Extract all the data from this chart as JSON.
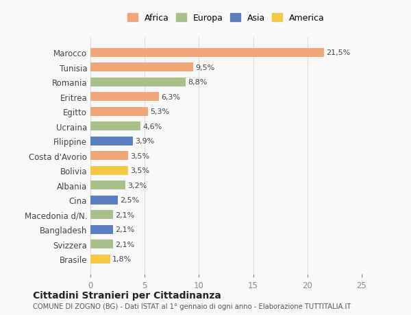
{
  "categories": [
    "Brasile",
    "Svizzera",
    "Bangladesh",
    "Macedonia d/N.",
    "Cina",
    "Albania",
    "Bolivia",
    "Costa d'Avorio",
    "Filippine",
    "Ucraina",
    "Egitto",
    "Eritrea",
    "Romania",
    "Tunisia",
    "Marocco"
  ],
  "values": [
    1.8,
    2.1,
    2.1,
    2.1,
    2.5,
    3.2,
    3.5,
    3.5,
    3.9,
    4.6,
    5.3,
    6.3,
    8.8,
    9.5,
    21.5
  ],
  "colors": [
    "#F5C842",
    "#A8C08A",
    "#5B7FC1",
    "#A8C08A",
    "#5B7FC1",
    "#A8C08A",
    "#F5C842",
    "#F0A87A",
    "#5B7FC1",
    "#A8C08A",
    "#F0A87A",
    "#F0A87A",
    "#A8C08A",
    "#F0A87A",
    "#F0A87A"
  ],
  "labels": [
    "1,8%",
    "2,1%",
    "2,1%",
    "2,1%",
    "2,5%",
    "3,2%",
    "3,5%",
    "3,5%",
    "3,9%",
    "4,6%",
    "5,3%",
    "6,3%",
    "8,8%",
    "9,5%",
    "21,5%"
  ],
  "xlim": [
    0,
    25
  ],
  "xticks": [
    0,
    5,
    10,
    15,
    20,
    25
  ],
  "legend": [
    {
      "label": "Africa",
      "color": "#F0A87A"
    },
    {
      "label": "Europa",
      "color": "#A8C08A"
    },
    {
      "label": "Asia",
      "color": "#5B7FC1"
    },
    {
      "label": "America",
      "color": "#F5C842"
    }
  ],
  "title": "Cittadini Stranieri per Cittadinanza",
  "subtitle": "COMUNE DI ZOGNO (BG) - Dati ISTAT al 1° gennaio di ogni anno - Elaborazione TUTTITALIA.IT",
  "background_color": "#f9f9f9",
  "grid_color": "#dddddd"
}
